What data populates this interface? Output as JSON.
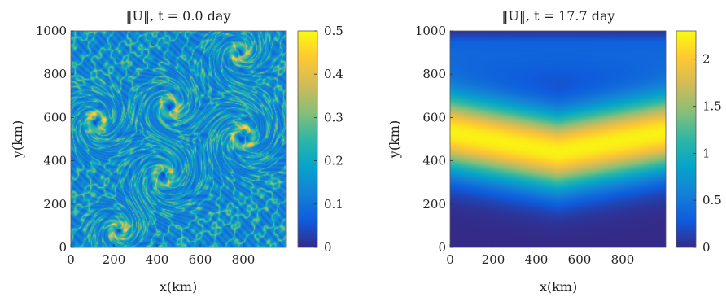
{
  "chart_data": [
    {
      "type": "heatmap",
      "title": "‖U‖,  t = 0.0 day",
      "xlabel": "x(km)",
      "ylabel": "y(km)",
      "xlim": [
        0,
        1000
      ],
      "ylim": [
        0,
        1000
      ],
      "x_ticks": [
        0,
        200,
        400,
        600,
        800
      ],
      "y_ticks": [
        0,
        200,
        400,
        600,
        800,
        1000
      ],
      "colormap": "parula",
      "colorbar": {
        "range": [
          0,
          0.5
        ],
        "ticks": [
          "0",
          "0.1",
          "0.2",
          "0.3",
          "0.4",
          "0.5"
        ]
      },
      "vortices": [
        {
          "x": 460,
          "y": 650,
          "r": 70
        },
        {
          "x": 800,
          "y": 510,
          "r": 85
        },
        {
          "x": 780,
          "y": 900,
          "r": 65
        },
        {
          "x": 430,
          "y": 330,
          "r": 80
        },
        {
          "x": 120,
          "y": 580,
          "r": 70
        },
        {
          "x": 220,
          "y": 80,
          "r": 60
        }
      ]
    },
    {
      "type": "heatmap",
      "title": "‖U‖,  t = 17.7 day",
      "xlabel": "x(km)",
      "ylabel": "y(km)",
      "xlim": [
        0,
        1000
      ],
      "ylim": [
        0,
        1000
      ],
      "x_ticks": [
        0,
        200,
        400,
        600,
        800
      ],
      "y_ticks": [
        0,
        200,
        400,
        600,
        800,
        1000
      ],
      "colormap": "parula",
      "colorbar": {
        "range": [
          0,
          2.3
        ],
        "ticks": [
          "0",
          "0.5",
          "1",
          "1.5",
          "2"
        ]
      },
      "jet_profile": [
        {
          "x": 0,
          "y_center": 530
        },
        {
          "x": 500,
          "y_center": 440
        },
        {
          "x": 1000,
          "y_center": 530
        }
      ],
      "jet_peak": 2.25
    }
  ],
  "colors": {
    "parula": [
      "#352a87",
      "#0f5cdd",
      "#1481d6",
      "#06a4ca",
      "#2eb7a4",
      "#87bf77",
      "#d1bb59",
      "#fec832",
      "#f9fb0e"
    ]
  }
}
